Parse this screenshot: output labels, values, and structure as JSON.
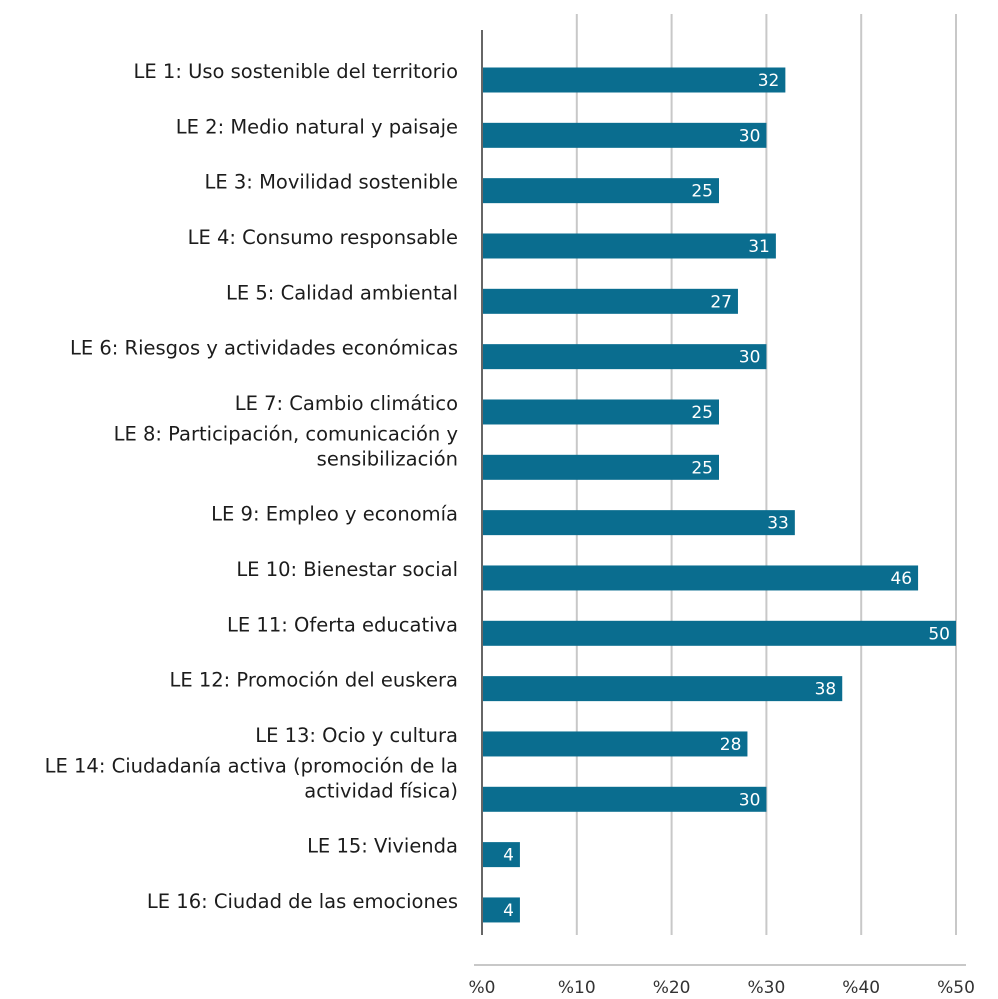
{
  "chart_data": {
    "type": "bar",
    "orientation": "horizontal",
    "categories": [
      [
        "LE 1: Uso sostenible del territorio"
      ],
      [
        "LE 2: Medio natural y paisaje"
      ],
      [
        "LE 3: Movilidad sostenible"
      ],
      [
        "LE 4: Consumo responsable"
      ],
      [
        "LE 5: Calidad ambiental"
      ],
      [
        "LE 6: Riesgos y actividades económicas"
      ],
      [
        "LE 7: Cambio climático"
      ],
      [
        "LE 8: Participación, comunicación y",
        "sensibilización"
      ],
      [
        "LE 9: Empleo y economía"
      ],
      [
        "LE 10: Bienestar social"
      ],
      [
        "LE 11: Oferta educativa"
      ],
      [
        "LE 12: Promoción del euskera"
      ],
      [
        "LE 13: Ocio y cultura"
      ],
      [
        "LE 14: Ciudadanía activa (promoción de la",
        "actividad física)"
      ],
      [
        "LE 15: Vivienda"
      ],
      [
        "LE 16: Ciudad de las emociones"
      ]
    ],
    "values": [
      32,
      30,
      25,
      31,
      27,
      30,
      25,
      25,
      33,
      46,
      50,
      38,
      28,
      30,
      4,
      4
    ],
    "xlim": [
      0,
      50
    ],
    "xticks": [
      0,
      10,
      20,
      30,
      40,
      50
    ],
    "tick_labels": [
      "%0",
      "%10",
      "%20",
      "%30",
      "%40",
      "%50"
    ],
    "title": "",
    "xlabel": "",
    "ylabel": "",
    "grid": "vertical",
    "legend": "none",
    "colors": {
      "bar": "#0a6d8f",
      "grid": "#c8c8c8",
      "axis": "#666666",
      "data_label": "#ffffff"
    }
  }
}
